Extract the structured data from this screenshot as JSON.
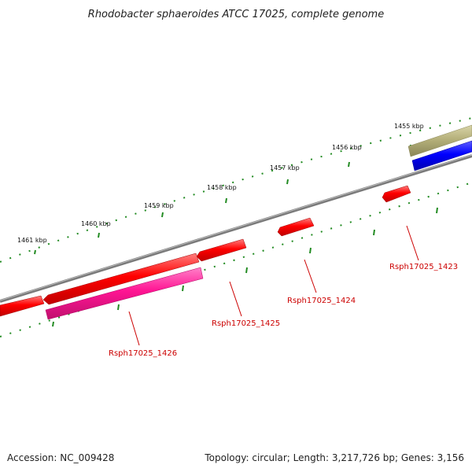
{
  "title": "Rhodobacter sphaeroides ATCC 17025, complete genome",
  "scale_labels": [
    "1455 kbp",
    "1456 kbp",
    "1457 kbp",
    "1458 kbp",
    "1459 kbp",
    "1460 kbp",
    "1461 kbp"
  ],
  "gene_labels": [
    "Rsph17025_1423",
    "Rsph17025_1424",
    "Rsph17025_1425",
    "Rsph17025_1426"
  ],
  "footer": {
    "accession": "Accession: NC_009428",
    "summary": "Topology: circular; Length: 3,217,726 bp; Genes: 3,156"
  },
  "colors": {
    "backbone": "#808080",
    "gene_red": "#ff0000",
    "gene_pink": "#ff1493",
    "gene_blue": "#0000ff",
    "gene_olive": "#b5b07a",
    "scale_green": "#228b22",
    "label_red": "#cc0000"
  }
}
